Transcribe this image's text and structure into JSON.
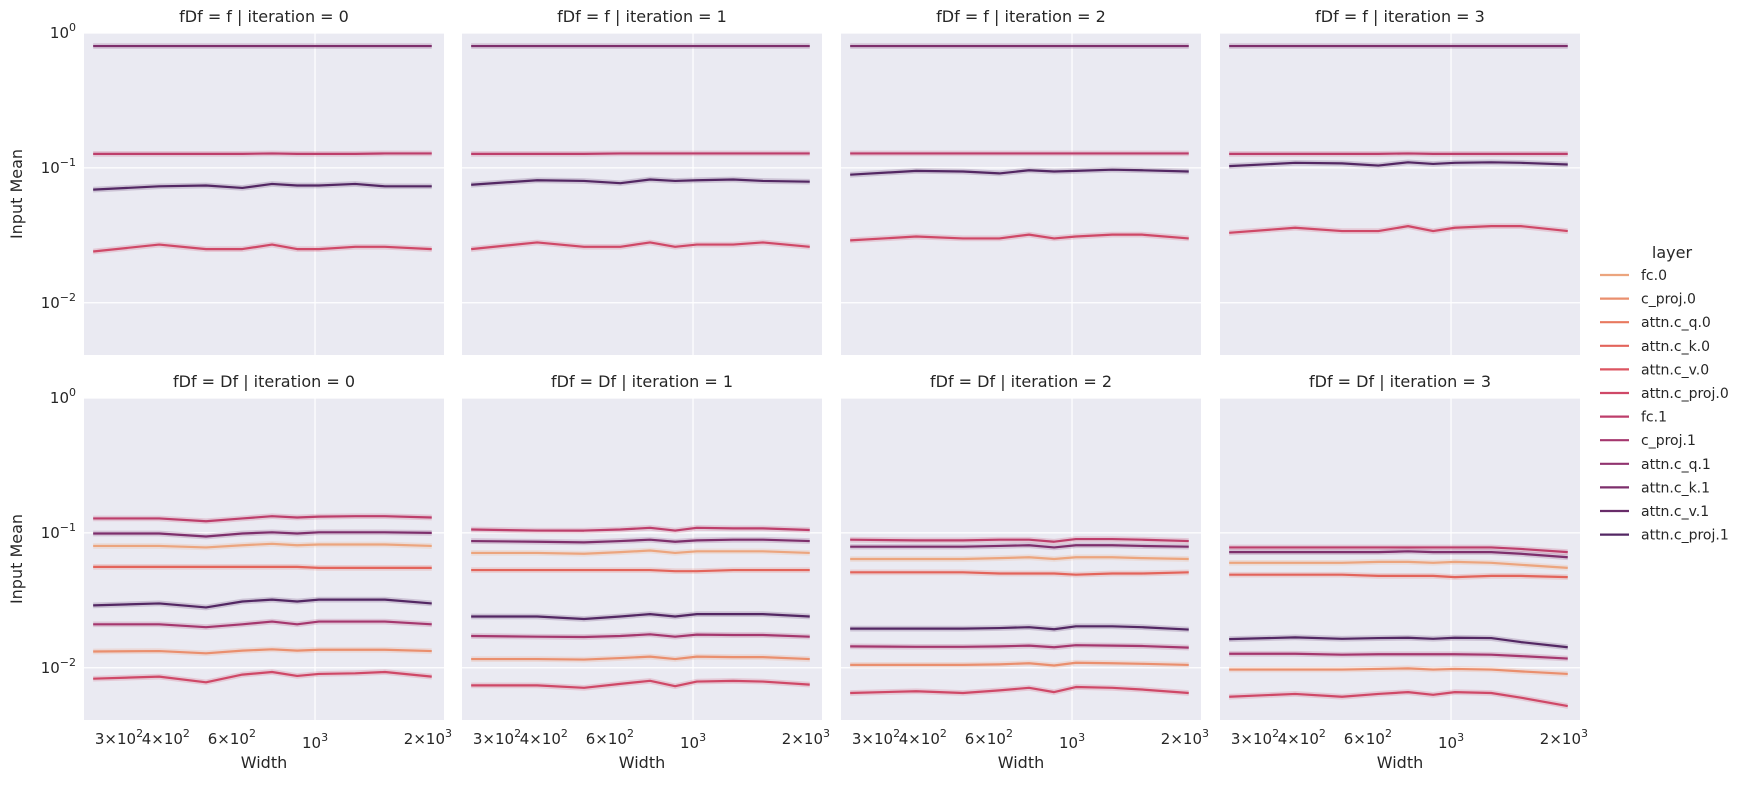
{
  "chart_data": {
    "type": "line",
    "facet_row": "fDf",
    "facet_col": "iteration",
    "xlabel": "Width",
    "ylabel": "Input Mean",
    "xscale": "log",
    "yscale": "log",
    "xlim": [
      242,
      2208
    ],
    "ylim": [
      0.0041,
      1.0
    ],
    "grid": true,
    "x": [
      256,
      384,
      512,
      640,
      768,
      896,
      1024,
      1280,
      1536,
      2048
    ],
    "x_ticks": [
      {
        "value": 300,
        "base": "3",
        "exp": "2",
        "mant": true
      },
      {
        "value": 400,
        "base": "4",
        "exp": "2",
        "mant": true
      },
      {
        "value": 600,
        "base": "6",
        "exp": "2",
        "mant": true
      },
      {
        "value": 1000,
        "base": "",
        "exp": "3",
        "mant": false
      },
      {
        "value": 2000,
        "base": "2",
        "exp": "3",
        "mant": true
      }
    ],
    "y_ticks": [
      {
        "value": 1,
        "exp": "0"
      },
      {
        "value": 0.1,
        "exp": "−1"
      },
      {
        "value": 0.01,
        "exp": "−2"
      }
    ],
    "legend": {
      "title": "layer",
      "placement": "right",
      "entries": [
        {
          "name": "fc.0",
          "color": "#eca57e"
        },
        {
          "name": "c_proj.0",
          "color": "#ea8f6e"
        },
        {
          "name": "attn.c_q.0",
          "color": "#e8795f"
        },
        {
          "name": "attn.c_k.0",
          "color": "#e3645b"
        },
        {
          "name": "attn.c_v.0",
          "color": "#dc5561"
        },
        {
          "name": "attn.c_proj.0",
          "color": "#cf4867"
        },
        {
          "name": "fc.1",
          "color": "#bd3e6b"
        },
        {
          "name": "c_proj.1",
          "color": "#a5376e"
        },
        {
          "name": "attn.c_q.1",
          "color": "#91336f"
        },
        {
          "name": "attn.c_k.1",
          "color": "#7d2f6c"
        },
        {
          "name": "attn.c_v.1",
          "color": "#682c69"
        },
        {
          "name": "attn.c_proj.1",
          "color": "#532763"
        }
      ]
    },
    "panels": [
      {
        "title": "fDf = f | iteration = 0",
        "row": 0,
        "col": 0,
        "series": [
          {
            "layer": "attn.c_k.1",
            "values": [
              0.8,
              0.8,
              0.8,
              0.8,
              0.8,
              0.8,
              0.8,
              0.8,
              0.8,
              0.8
            ]
          },
          {
            "layer": "fc.1",
            "values": [
              0.127,
              0.127,
              0.127,
              0.127,
              0.128,
              0.127,
              0.127,
              0.127,
              0.128,
              0.128
            ]
          },
          {
            "layer": "attn.c_proj.1",
            "values": [
              0.069,
              0.073,
              0.074,
              0.071,
              0.076,
              0.074,
              0.074,
              0.076,
              0.073,
              0.073
            ]
          },
          {
            "layer": "attn.c_proj.0",
            "values": [
              0.024,
              0.027,
              0.025,
              0.025,
              0.027,
              0.025,
              0.025,
              0.026,
              0.026,
              0.025
            ]
          }
        ]
      },
      {
        "title": "fDf = f | iteration = 1",
        "row": 0,
        "col": 1,
        "series": [
          {
            "layer": "attn.c_k.1",
            "values": [
              0.8,
              0.8,
              0.8,
              0.8,
              0.8,
              0.8,
              0.8,
              0.8,
              0.8,
              0.8
            ]
          },
          {
            "layer": "fc.1",
            "values": [
              0.127,
              0.127,
              0.127,
              0.128,
              0.128,
              0.128,
              0.128,
              0.128,
              0.128,
              0.128
            ]
          },
          {
            "layer": "attn.c_proj.1",
            "values": [
              0.075,
              0.081,
              0.08,
              0.077,
              0.082,
              0.08,
              0.081,
              0.082,
              0.08,
              0.079
            ]
          },
          {
            "layer": "attn.c_proj.0",
            "values": [
              0.025,
              0.028,
              0.026,
              0.026,
              0.028,
              0.026,
              0.027,
              0.027,
              0.028,
              0.026
            ]
          }
        ]
      },
      {
        "title": "fDf = f | iteration = 2",
        "row": 0,
        "col": 2,
        "series": [
          {
            "layer": "attn.c_k.1",
            "values": [
              0.8,
              0.8,
              0.8,
              0.8,
              0.8,
              0.8,
              0.8,
              0.8,
              0.8,
              0.8
            ]
          },
          {
            "layer": "fc.1",
            "values": [
              0.128,
              0.128,
              0.128,
              0.128,
              0.128,
              0.128,
              0.128,
              0.128,
              0.128,
              0.128
            ]
          },
          {
            "layer": "attn.c_proj.1",
            "values": [
              0.089,
              0.095,
              0.094,
              0.091,
              0.096,
              0.094,
              0.095,
              0.097,
              0.096,
              0.094
            ]
          },
          {
            "layer": "attn.c_proj.0",
            "values": [
              0.029,
              0.031,
              0.03,
              0.03,
              0.032,
              0.03,
              0.031,
              0.032,
              0.032,
              0.03
            ]
          }
        ]
      },
      {
        "title": "fDf = f | iteration = 3",
        "row": 0,
        "col": 3,
        "series": [
          {
            "layer": "attn.c_k.1",
            "values": [
              0.8,
              0.8,
              0.8,
              0.8,
              0.8,
              0.8,
              0.8,
              0.8,
              0.8,
              0.8
            ]
          },
          {
            "layer": "fc.1",
            "values": [
              0.127,
              0.127,
              0.127,
              0.127,
              0.128,
              0.127,
              0.127,
              0.127,
              0.127,
              0.127
            ]
          },
          {
            "layer": "attn.c_proj.1",
            "values": [
              0.103,
              0.109,
              0.108,
              0.104,
              0.11,
              0.107,
              0.109,
              0.11,
              0.109,
              0.106
            ]
          },
          {
            "layer": "attn.c_proj.0",
            "values": [
              0.033,
              0.036,
              0.034,
              0.034,
              0.037,
              0.034,
              0.036,
              0.037,
              0.037,
              0.034
            ]
          }
        ]
      },
      {
        "title": "fDf = Df | iteration = 0",
        "row": 1,
        "col": 0,
        "series": [
          {
            "layer": "fc.1",
            "values": [
              0.128,
              0.128,
              0.122,
              0.128,
              0.133,
              0.13,
              0.132,
              0.133,
              0.133,
              0.13
            ]
          },
          {
            "layer": "attn.c_k.1",
            "values": [
              0.099,
              0.099,
              0.094,
              0.099,
              0.101,
              0.099,
              0.101,
              0.101,
              0.101,
              0.1
            ]
          },
          {
            "layer": "fc.0",
            "values": [
              0.08,
              0.08,
              0.078,
              0.081,
              0.083,
              0.081,
              0.082,
              0.082,
              0.082,
              0.08
            ]
          },
          {
            "layer": "attn.c_k.0",
            "values": [
              0.056,
              0.056,
              0.056,
              0.056,
              0.056,
              0.056,
              0.055,
              0.055,
              0.055,
              0.055
            ]
          },
          {
            "layer": "attn.c_proj.1",
            "values": [
              0.029,
              0.03,
              0.028,
              0.031,
              0.032,
              0.031,
              0.032,
              0.032,
              0.032,
              0.03
            ]
          },
          {
            "layer": "c_proj.1",
            "values": [
              0.021,
              0.021,
              0.02,
              0.021,
              0.022,
              0.021,
              0.022,
              0.022,
              0.022,
              0.021
            ]
          },
          {
            "layer": "c_proj.0",
            "values": [
              0.0132,
              0.0133,
              0.0128,
              0.0134,
              0.0137,
              0.0134,
              0.0136,
              0.0136,
              0.0136,
              0.0133
            ]
          },
          {
            "layer": "attn.c_proj.0",
            "values": [
              0.0083,
              0.0086,
              0.0078,
              0.0089,
              0.0093,
              0.0087,
              0.009,
              0.0091,
              0.0093,
              0.0086
            ]
          }
        ]
      },
      {
        "title": "fDf = Df | iteration = 1",
        "row": 1,
        "col": 1,
        "series": [
          {
            "layer": "fc.1",
            "values": [
              0.106,
              0.104,
              0.104,
              0.106,
              0.109,
              0.104,
              0.109,
              0.108,
              0.108,
              0.105
            ]
          },
          {
            "layer": "attn.c_k.1",
            "values": [
              0.087,
              0.086,
              0.085,
              0.087,
              0.089,
              0.086,
              0.088,
              0.089,
              0.089,
              0.087
            ]
          },
          {
            "layer": "fc.0",
            "values": [
              0.071,
              0.071,
              0.07,
              0.072,
              0.074,
              0.071,
              0.073,
              0.073,
              0.073,
              0.071
            ]
          },
          {
            "layer": "attn.c_k.0",
            "values": [
              0.053,
              0.053,
              0.053,
              0.053,
              0.053,
              0.052,
              0.052,
              0.053,
              0.053,
              0.053
            ]
          },
          {
            "layer": "attn.c_proj.1",
            "values": [
              0.024,
              0.024,
              0.023,
              0.024,
              0.025,
              0.024,
              0.025,
              0.025,
              0.025,
              0.024
            ]
          },
          {
            "layer": "c_proj.1",
            "values": [
              0.0172,
              0.017,
              0.0169,
              0.0172,
              0.0177,
              0.017,
              0.0176,
              0.0175,
              0.0175,
              0.017
            ]
          },
          {
            "layer": "c_proj.0",
            "values": [
              0.0116,
              0.0116,
              0.0115,
              0.0118,
              0.0121,
              0.0116,
              0.0121,
              0.012,
              0.012,
              0.0116
            ]
          },
          {
            "layer": "attn.c_proj.0",
            "values": [
              0.0074,
              0.0074,
              0.0071,
              0.0076,
              0.008,
              0.0073,
              0.0079,
              0.008,
              0.0079,
              0.0075
            ]
          }
        ]
      },
      {
        "title": "fDf = Df | iteration = 2",
        "row": 1,
        "col": 2,
        "series": [
          {
            "layer": "fc.1",
            "values": [
              0.089,
              0.088,
              0.088,
              0.089,
              0.089,
              0.086,
              0.09,
              0.09,
              0.089,
              0.087
            ]
          },
          {
            "layer": "attn.c_k.1",
            "values": [
              0.079,
              0.079,
              0.079,
              0.08,
              0.081,
              0.078,
              0.081,
              0.081,
              0.08,
              0.079
            ]
          },
          {
            "layer": "fc.0",
            "values": [
              0.064,
              0.064,
              0.064,
              0.065,
              0.066,
              0.064,
              0.066,
              0.066,
              0.065,
              0.064
            ]
          },
          {
            "layer": "attn.c_k.0",
            "values": [
              0.051,
              0.051,
              0.051,
              0.05,
              0.05,
              0.05,
              0.049,
              0.05,
              0.05,
              0.051
            ]
          },
          {
            "layer": "attn.c_proj.1",
            "values": [
              0.0195,
              0.0195,
              0.0195,
              0.0197,
              0.02,
              0.0193,
              0.0203,
              0.0203,
              0.02,
              0.0192
            ]
          },
          {
            "layer": "c_proj.1",
            "values": [
              0.0144,
              0.0143,
              0.0143,
              0.0144,
              0.0146,
              0.0142,
              0.0147,
              0.0146,
              0.0145,
              0.0141
            ]
          },
          {
            "layer": "c_proj.0",
            "values": [
              0.0105,
              0.0105,
              0.0105,
              0.0106,
              0.0108,
              0.0104,
              0.0109,
              0.0108,
              0.0107,
              0.0105
            ]
          },
          {
            "layer": "attn.c_proj.0",
            "values": [
              0.0065,
              0.0067,
              0.0065,
              0.0068,
              0.0071,
              0.0066,
              0.0072,
              0.0071,
              0.0069,
              0.0065
            ]
          }
        ]
      },
      {
        "title": "fDf = Df | iteration = 3",
        "row": 1,
        "col": 3,
        "series": [
          {
            "layer": "fc.1",
            "values": [
              0.078,
              0.078,
              0.078,
              0.078,
              0.078,
              0.078,
              0.078,
              0.078,
              0.076,
              0.072
            ]
          },
          {
            "layer": "attn.c_k.1",
            "values": [
              0.072,
              0.072,
              0.072,
              0.072,
              0.073,
              0.072,
              0.072,
              0.072,
              0.07,
              0.066
            ]
          },
          {
            "layer": "fc.0",
            "values": [
              0.06,
              0.06,
              0.06,
              0.061,
              0.061,
              0.06,
              0.061,
              0.06,
              0.058,
              0.055
            ]
          },
          {
            "layer": "attn.c_k.0",
            "values": [
              0.049,
              0.049,
              0.049,
              0.048,
              0.048,
              0.048,
              0.047,
              0.048,
              0.048,
              0.047
            ]
          },
          {
            "layer": "attn.c_proj.1",
            "values": [
              0.0163,
              0.0168,
              0.0164,
              0.0166,
              0.0167,
              0.0164,
              0.0167,
              0.0166,
              0.0155,
              0.0142
            ]
          },
          {
            "layer": "c_proj.1",
            "values": [
              0.0127,
              0.0127,
              0.0125,
              0.0126,
              0.0126,
              0.0126,
              0.0126,
              0.0125,
              0.0122,
              0.0117
            ]
          },
          {
            "layer": "c_proj.0",
            "values": [
              0.0097,
              0.0097,
              0.0097,
              0.0098,
              0.0099,
              0.0097,
              0.0098,
              0.0097,
              0.0094,
              0.009
            ]
          },
          {
            "layer": "attn.c_proj.0",
            "values": [
              0.0061,
              0.0064,
              0.0061,
              0.0064,
              0.0066,
              0.0063,
              0.0066,
              0.0065,
              0.006,
              0.0052
            ]
          }
        ]
      }
    ]
  }
}
